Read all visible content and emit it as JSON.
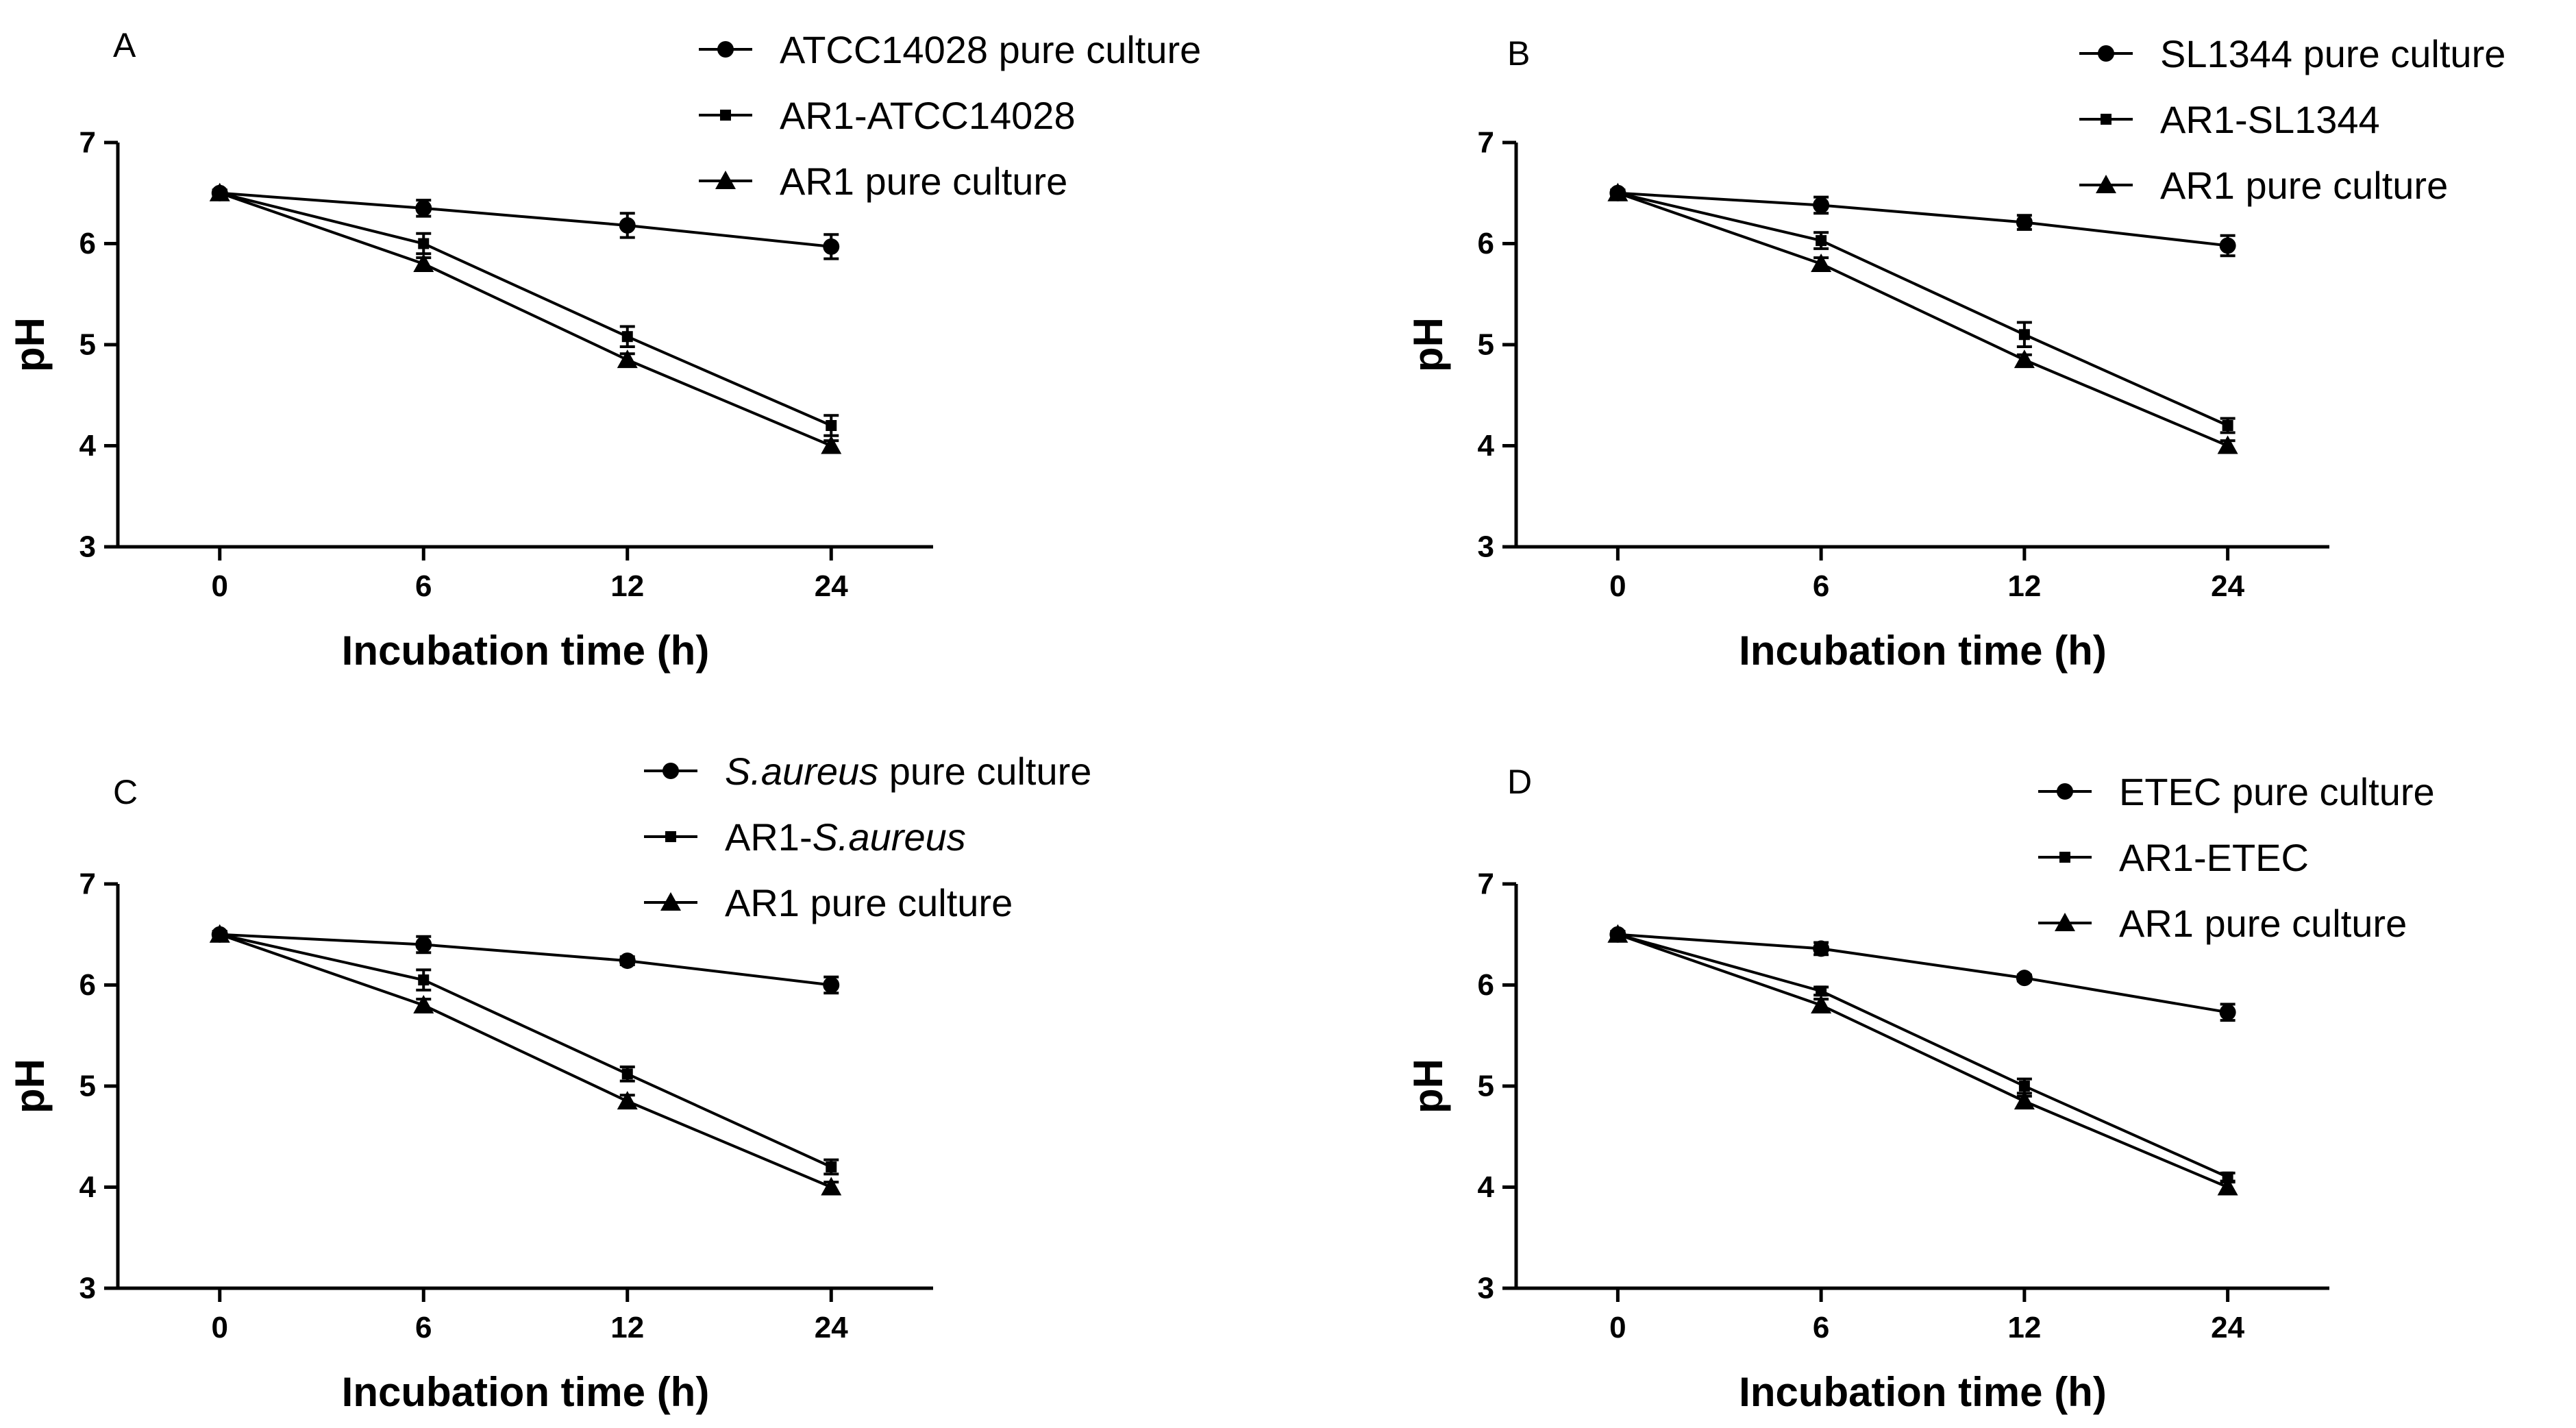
{
  "colors": {
    "line": "#000000",
    "background": "#ffffff"
  },
  "chart_data": [
    {
      "panel": "A",
      "type": "line",
      "title": "",
      "xlabel": "Incubation time (h)",
      "ylabel": "pH",
      "categories": [
        "0",
        "6",
        "12",
        "24"
      ],
      "ylim": [
        3,
        7
      ],
      "yticks": [
        3,
        4,
        5,
        6,
        7
      ],
      "grid": false,
      "legend_position": "top-right",
      "series": [
        {
          "name": "ATCC14028 pure culture",
          "name_parts": [
            {
              "text": "ATCC14028 pure culture",
              "italic": false
            }
          ],
          "marker": "circle",
          "values": [
            6.5,
            6.35,
            6.18,
            5.97
          ],
          "errors": [
            0.03,
            0.08,
            0.12,
            0.12
          ]
        },
        {
          "name": "AR1-ATCC14028",
          "name_parts": [
            {
              "text": "AR1-ATCC14028",
              "italic": false
            }
          ],
          "marker": "square",
          "values": [
            6.5,
            6.0,
            5.08,
            4.2
          ],
          "errors": [
            0.03,
            0.1,
            0.1,
            0.1
          ]
        },
        {
          "name": "AR1 pure culture",
          "name_parts": [
            {
              "text": "AR1 pure culture",
              "italic": false
            }
          ],
          "marker": "triangle",
          "values": [
            6.5,
            5.8,
            4.85,
            4.0
          ],
          "errors": [
            0.03,
            0.06,
            0.06,
            0.05
          ]
        }
      ]
    },
    {
      "panel": "B",
      "type": "line",
      "title": "",
      "xlabel": "Incubation time (h)",
      "ylabel": "pH",
      "categories": [
        "0",
        "6",
        "12",
        "24"
      ],
      "ylim": [
        3,
        7
      ],
      "yticks": [
        3,
        4,
        5,
        6,
        7
      ],
      "grid": false,
      "legend_position": "top-right",
      "series": [
        {
          "name": "SL1344 pure culture",
          "name_parts": [
            {
              "text": "SL1344 pure culture",
              "italic": false
            }
          ],
          "marker": "circle",
          "values": [
            6.5,
            6.38,
            6.21,
            5.98
          ],
          "errors": [
            0.03,
            0.08,
            0.07,
            0.1
          ]
        },
        {
          "name": "AR1-SL1344",
          "name_parts": [
            {
              "text": "AR1-SL1344",
              "italic": false
            }
          ],
          "marker": "square",
          "values": [
            6.5,
            6.03,
            5.1,
            4.2
          ],
          "errors": [
            0.03,
            0.08,
            0.12,
            0.07
          ]
        },
        {
          "name": "AR1 pure culture",
          "name_parts": [
            {
              "text": "AR1 pure culture",
              "italic": false
            }
          ],
          "marker": "triangle",
          "values": [
            6.5,
            5.8,
            4.85,
            4.0
          ],
          "errors": [
            0.03,
            0.06,
            0.05,
            0.05
          ]
        }
      ]
    },
    {
      "panel": "C",
      "type": "line",
      "title": "",
      "xlabel": "Incubation time (h)",
      "ylabel": "pH",
      "categories": [
        "0",
        "6",
        "12",
        "24"
      ],
      "ylim": [
        3,
        7
      ],
      "yticks": [
        3,
        4,
        5,
        6,
        7
      ],
      "grid": false,
      "legend_position": "top-right",
      "series": [
        {
          "name": "S.aureus pure culture",
          "name_parts": [
            {
              "text": "S.aureus",
              "italic": true
            },
            {
              "text": " pure culture",
              "italic": false
            }
          ],
          "marker": "circle",
          "values": [
            6.5,
            6.4,
            6.24,
            6.0
          ],
          "errors": [
            0.03,
            0.08,
            0.04,
            0.08
          ]
        },
        {
          "name": "AR1-S.aureus",
          "name_parts": [
            {
              "text": "AR1-",
              "italic": false
            },
            {
              "text": "S.aureus",
              "italic": true
            }
          ],
          "marker": "square",
          "values": [
            6.5,
            6.05,
            5.12,
            4.2
          ],
          "errors": [
            0.03,
            0.1,
            0.07,
            0.07
          ]
        },
        {
          "name": "AR1 pure culture",
          "name_parts": [
            {
              "text": "AR1 pure culture",
              "italic": false
            }
          ],
          "marker": "triangle",
          "values": [
            6.5,
            5.8,
            4.85,
            4.0
          ],
          "errors": [
            0.03,
            0.06,
            0.06,
            0.05
          ]
        }
      ]
    },
    {
      "panel": "D",
      "type": "line",
      "title": "",
      "xlabel": "Incubation time (h)",
      "ylabel": "pH",
      "categories": [
        "0",
        "6",
        "12",
        "24"
      ],
      "ylim": [
        3,
        7
      ],
      "yticks": [
        3,
        4,
        5,
        6,
        7
      ],
      "grid": false,
      "legend_position": "top-right",
      "series": [
        {
          "name": "ETEC pure culture",
          "name_parts": [
            {
              "text": "ETEC pure culture",
              "italic": false
            }
          ],
          "marker": "circle",
          "values": [
            6.5,
            6.36,
            6.07,
            5.73
          ],
          "errors": [
            0.03,
            0.06,
            0.03,
            0.08
          ]
        },
        {
          "name": "AR1-ETEC",
          "name_parts": [
            {
              "text": "AR1-ETEC",
              "italic": false
            }
          ],
          "marker": "square",
          "values": [
            6.5,
            5.94,
            5.0,
            4.1
          ],
          "errors": [
            0.03,
            0.04,
            0.07,
            0.04
          ]
        },
        {
          "name": "AR1 pure culture",
          "name_parts": [
            {
              "text": "AR1 pure culture",
              "italic": false
            }
          ],
          "marker": "triangle",
          "values": [
            6.5,
            5.8,
            4.85,
            4.0
          ],
          "errors": [
            0.03,
            0.06,
            0.05,
            0.05
          ]
        }
      ]
    }
  ]
}
